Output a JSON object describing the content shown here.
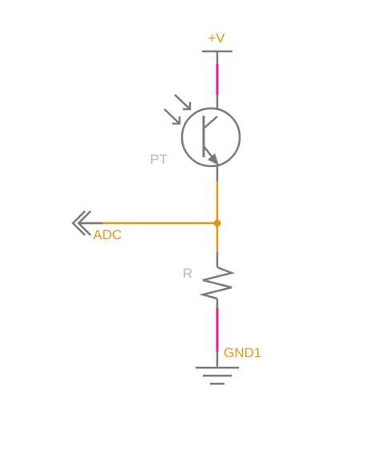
{
  "colors": {
    "background": "#ffffff",
    "wire": "#e0961e",
    "pin": "#e6198c",
    "symbol": "#7a7a7a",
    "net_label": "#e0961e",
    "part_label": "#b8b8b8"
  },
  "nets": {
    "supply": "+V",
    "signal": "ADC",
    "ground": "GND1"
  },
  "parts": {
    "phototransistor": "PT",
    "resistor": "R"
  },
  "icons": {
    "phototransistor": "phototransistor-symbol",
    "light": "light-arrows",
    "resistor": "resistor-zigzag",
    "ground": "ground-symbol",
    "port": "off-page-connector"
  }
}
